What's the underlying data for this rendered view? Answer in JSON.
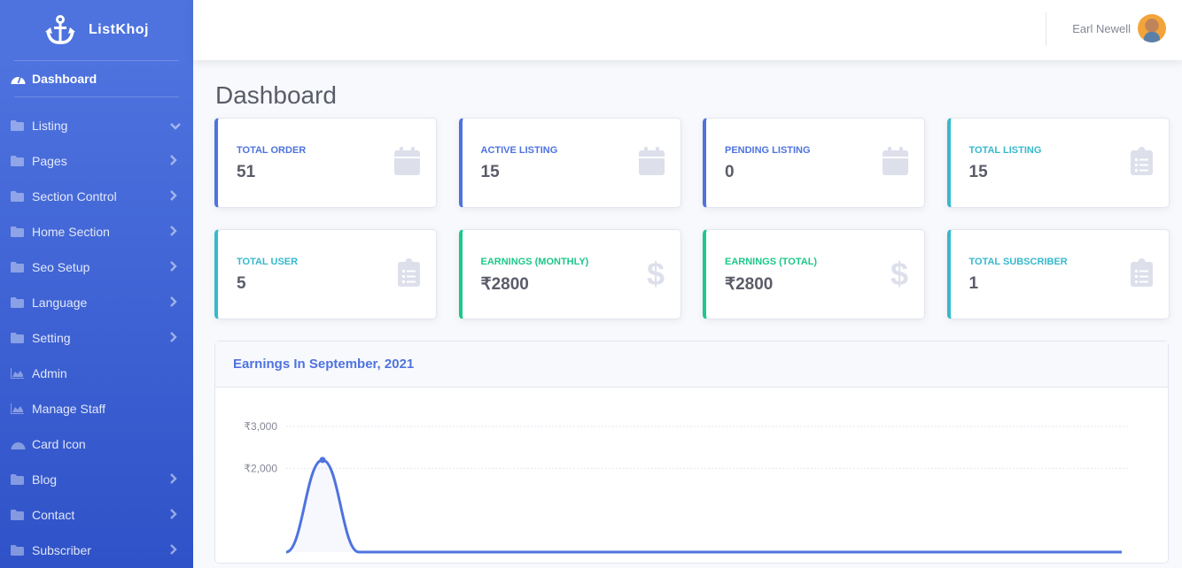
{
  "brand": {
    "name": "ListKhoj",
    "icon": "anchor-icon"
  },
  "sidebar": {
    "dashboard": "Dashboard",
    "items": [
      {
        "label": "Listing",
        "icon": "folder-icon",
        "chevron": "down"
      },
      {
        "label": "Pages",
        "icon": "folder-icon",
        "chevron": "right"
      },
      {
        "label": "Section Control",
        "icon": "folder-icon",
        "chevron": "right"
      },
      {
        "label": "Home Section",
        "icon": "folder-icon",
        "chevron": "right"
      },
      {
        "label": "Seo Setup",
        "icon": "folder-icon",
        "chevron": "right"
      },
      {
        "label": "Language",
        "icon": "folder-icon",
        "chevron": "right"
      },
      {
        "label": "Setting",
        "icon": "folder-icon",
        "chevron": "right"
      },
      {
        "label": "Admin",
        "icon": "chart-area-icon",
        "chevron": ""
      },
      {
        "label": "Manage Staff",
        "icon": "chart-area-icon",
        "chevron": ""
      },
      {
        "label": "Card Icon",
        "icon": "tachometer-icon",
        "chevron": ""
      },
      {
        "label": "Blog",
        "icon": "folder-icon",
        "chevron": "right"
      },
      {
        "label": "Contact",
        "icon": "folder-icon",
        "chevron": "right"
      },
      {
        "label": "Subscriber",
        "icon": "folder-icon",
        "chevron": "right"
      }
    ]
  },
  "topbar": {
    "user_name": "Earl Newell"
  },
  "page_title": "Dashboard",
  "cards": [
    {
      "title": "Total Order",
      "value": "51",
      "color": "#4e73df",
      "icon": "calendar-icon"
    },
    {
      "title": "Active Listing",
      "value": "15",
      "color": "#4e73df",
      "icon": "calendar-icon"
    },
    {
      "title": "Pending Listing",
      "value": "0",
      "color": "#4e73df",
      "icon": "calendar-icon"
    },
    {
      "title": "Total Listing",
      "value": "15",
      "color": "#36b9cc",
      "icon": "clipboard-list-icon"
    },
    {
      "title": "Total User",
      "value": "5",
      "color": "#36b9cc",
      "icon": "clipboard-list-icon"
    },
    {
      "title": "Earnings (Monthly)",
      "value": "₹2800",
      "color": "#1cc88a",
      "icon": "dollar-icon"
    },
    {
      "title": "Earnings (Total)",
      "value": "₹2800",
      "color": "#1cc88a",
      "icon": "dollar-icon"
    },
    {
      "title": "Total Subscriber",
      "value": "1",
      "color": "#36b9cc",
      "icon": "clipboard-list-icon"
    }
  ],
  "chart_panel": {
    "title": "Earnings In September, 2021"
  },
  "chart_data": {
    "type": "area",
    "title": "",
    "ylim": [
      0,
      3000
    ],
    "yticks": [
      "₹3,000",
      "₹2,000"
    ],
    "ytick_values": [
      3000,
      2000
    ],
    "grid": true,
    "series": [
      {
        "values": [
          0,
          2200,
          0,
          0,
          0,
          0,
          0,
          0,
          0,
          0,
          0,
          0,
          0,
          0,
          0,
          0,
          0,
          0,
          0,
          0,
          0,
          0,
          0,
          0
        ],
        "color": "#4e73df"
      }
    ]
  }
}
